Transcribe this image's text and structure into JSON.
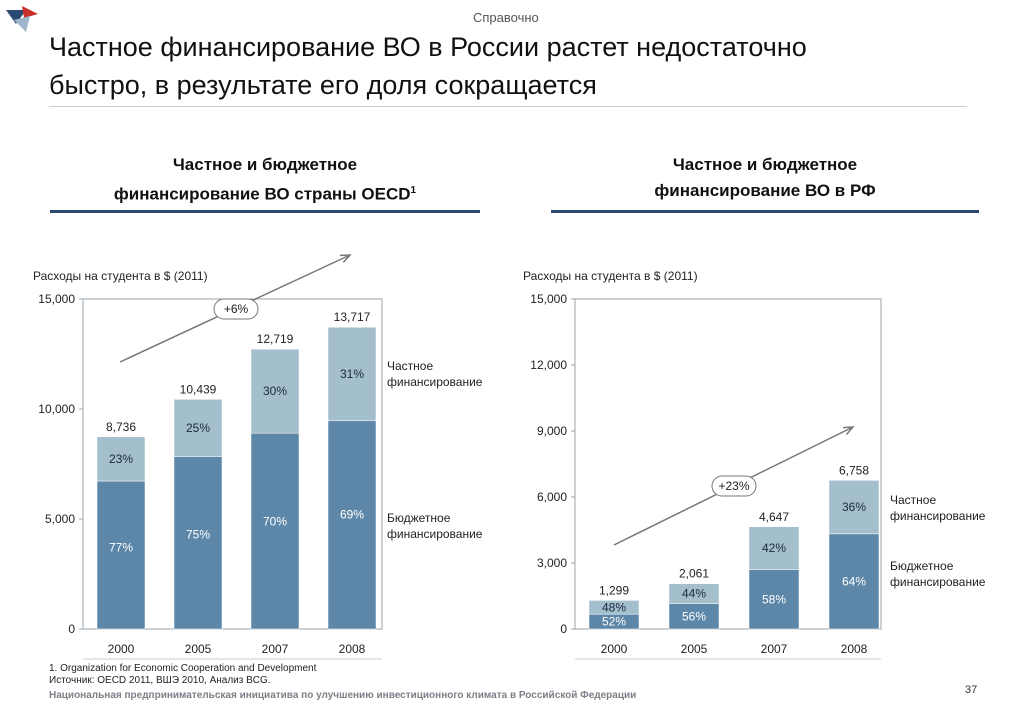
{
  "header": {
    "tag": "Справочно",
    "title_line1": "Частное финансирование ВО в России растет недостаточно",
    "title_line2": "быстро, в результате его доля сокращается"
  },
  "panels": [
    {
      "title_line1": "Частное и бюджетное",
      "title_line2": "финансирование ВО страны OECD",
      "title_sup": "1",
      "axis_label": "Расходы на студента в $ (2011)",
      "growth_badge": "+6%"
    },
    {
      "title_line1": "Частное и бюджетное",
      "title_line2": "финансирование ВО в РФ",
      "title_sup": "",
      "axis_label": "Расходы на студента в $ (2011)",
      "growth_badge": "+23%"
    }
  ],
  "legend": {
    "private_line1": "Частное",
    "private_line2": "финансирование",
    "public_line1": "Бюджетное",
    "public_line2": "финансирование"
  },
  "colors": {
    "private": "#a4bfcc",
    "public": "#5d87a8",
    "accent": "#2b4a73"
  },
  "chart_data": [
    {
      "type": "bar",
      "stacked": true,
      "categories": [
        "2000",
        "2005",
        "2007",
        "2008"
      ],
      "totals": [
        "8,736",
        "10,439",
        "12,719",
        "13,717"
      ],
      "total_values": [
        8736,
        10439,
        12719,
        13717
      ],
      "series": [
        {
          "name": "Бюджетное финансирование",
          "share_labels": [
            "77%",
            "75%",
            "70%",
            "69%"
          ],
          "shares": [
            77,
            75,
            70,
            69
          ]
        },
        {
          "name": "Частное финансирование",
          "share_labels": [
            "23%",
            "25%",
            "30%",
            "31%"
          ],
          "shares": [
            23,
            25,
            30,
            31
          ]
        }
      ],
      "ylim": [
        0,
        15000
      ],
      "yticks": [
        "0",
        "5,000",
        "10,000",
        "15,000"
      ],
      "ytick_values": [
        0,
        5000,
        10000,
        15000
      ],
      "ylabel": "Расходы на студента в $ (2011)",
      "annotation": "+6%"
    },
    {
      "type": "bar",
      "stacked": true,
      "categories": [
        "2000",
        "2005",
        "2007",
        "2008"
      ],
      "totals": [
        "1,299",
        "2,061",
        "4,647",
        "6,758"
      ],
      "total_values": [
        1299,
        2061,
        4647,
        6758
      ],
      "series": [
        {
          "name": "Бюджетное финансирование",
          "share_labels": [
            "52%",
            "56%",
            "58%",
            "64%"
          ],
          "shares": [
            52,
            56,
            58,
            64
          ]
        },
        {
          "name": "Частное финансирование",
          "share_labels": [
            "48%",
            "44%",
            "42%",
            "36%"
          ],
          "shares": [
            48,
            44,
            42,
            36
          ]
        }
      ],
      "ylim": [
        0,
        15000
      ],
      "yticks": [
        "0",
        "3,000",
        "6,000",
        "9,000",
        "12,000",
        "15,000"
      ],
      "ytick_values": [
        0,
        3000,
        6000,
        9000,
        12000,
        15000
      ],
      "ylabel": "Расходы на студента в $ (2011)",
      "annotation": "+23%"
    }
  ],
  "footer": {
    "note1": "1. Organization for Economic Cooperation and Development",
    "note2": "Источник: OECD 2011, ВШЭ 2010, Анализ BCG.",
    "org": "Национальная предпринимательская инициатива по улучшению инвестиционного климата в Российской Федерации",
    "page": "37"
  }
}
